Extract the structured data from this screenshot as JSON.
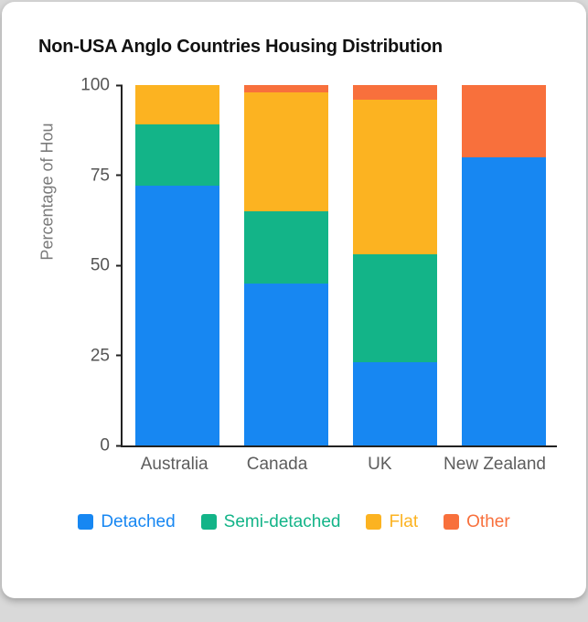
{
  "page": {
    "background_color": "#d9d9d9",
    "card_color": "#ffffff"
  },
  "chart_data": {
    "type": "bar",
    "stacked": true,
    "title": "Non-USA Anglo Countries Housing Distribution",
    "categories": [
      "Australia",
      "Canada",
      "UK",
      "New Zealand"
    ],
    "series": [
      {
        "name": "Detached",
        "color": "#1787f2",
        "values": [
          72,
          45,
          23,
          80
        ]
      },
      {
        "name": "Semi-detached",
        "color": "#13b488",
        "values": [
          17,
          20,
          30,
          0
        ]
      },
      {
        "name": "Flat",
        "color": "#fcb321",
        "values": [
          11,
          33,
          43,
          0
        ]
      },
      {
        "name": "Other",
        "color": "#f8703c",
        "values": [
          0,
          2,
          4,
          20
        ]
      }
    ],
    "xlabel": "",
    "ylabel": "Percentage of Hou",
    "ylim": [
      0,
      100
    ],
    "yticks": [
      0,
      25,
      50,
      75,
      100
    ],
    "grid": false,
    "legend_position": "bottom",
    "axis_color": "#222222",
    "tick_label_color": "#555555"
  }
}
